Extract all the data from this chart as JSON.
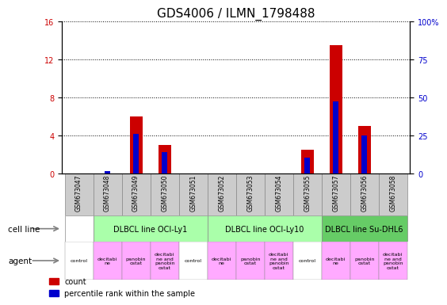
{
  "title": "GDS4006 / ILMN_1798488",
  "samples": [
    "GSM673047",
    "GSM673048",
    "GSM673049",
    "GSM673050",
    "GSM673051",
    "GSM673052",
    "GSM673053",
    "GSM673054",
    "GSM673055",
    "GSM673057",
    "GSM673056",
    "GSM673058"
  ],
  "counts": [
    0,
    0,
    6,
    3,
    0,
    0,
    0,
    0,
    2.5,
    13.5,
    5,
    0
  ],
  "percentiles_pct": [
    0,
    1.5,
    26,
    14,
    0,
    0,
    0,
    0,
    10,
    47,
    25,
    0
  ],
  "ylim_left": [
    0,
    16
  ],
  "ylim_right": [
    0,
    100
  ],
  "yticks_left": [
    0,
    4,
    8,
    12,
    16
  ],
  "yticks_right": [
    0,
    25,
    50,
    75,
    100
  ],
  "cell_line_groups": [
    {
      "label": "DLBCL line OCI-Ly1",
      "indices": [
        1,
        2,
        3,
        4
      ],
      "color": "#aaffaa"
    },
    {
      "label": "DLBCL line OCI-Ly10",
      "indices": [
        5,
        6,
        7,
        8
      ],
      "color": "#aaffaa"
    },
    {
      "label": "DLBCL line Su-DHL6",
      "indices": [
        9,
        10,
        11
      ],
      "color": "#66cc66"
    }
  ],
  "agents": [
    "control",
    "decitabi\nne",
    "panobin\nostat",
    "decitabi\nne and\npanobin\nostat",
    "control",
    "decitabi\nne",
    "panobin\nostat",
    "decitabi\nne and\npanobin\nostat",
    "control",
    "decitabi\nne",
    "panobin\nostat",
    "decitabi\nne and\npanobin\nostat"
  ],
  "agent_colors": [
    "#ffffff",
    "#ffaaff",
    "#ffaaff",
    "#ffaaff",
    "#ffffff",
    "#ffaaff",
    "#ffaaff",
    "#ffaaff",
    "#ffffff",
    "#ffaaff",
    "#ffaaff",
    "#ffaaff"
  ],
  "bar_color_count": "#cc0000",
  "bar_color_pct": "#0000cc",
  "title_fontsize": 11,
  "tick_fontsize": 7,
  "sample_bg_color": "#cccccc",
  "sample_box_edge": "#888888"
}
